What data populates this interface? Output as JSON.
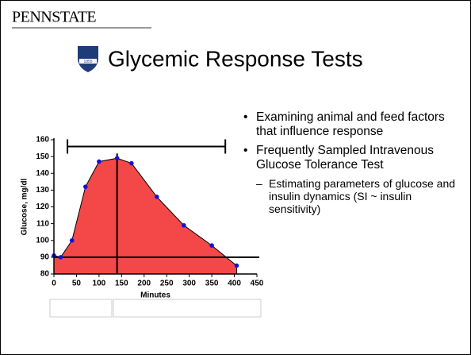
{
  "header": {
    "logo": "PENNSTATE",
    "seal_year": "1855",
    "title": "Glycemic Response Tests"
  },
  "bullets": [
    "Examining animal and feed factors that influence response",
    "Frequently Sampled Intravenous Glucose Tolerance Test"
  ],
  "sub_bullets": [
    "Estimating parameters of glucose and insulin dynamics (SI ~ insulin sensitivity)"
  ],
  "chart_data": {
    "type": "area",
    "xlabel": "Minutes",
    "ylabel": "Glucose, mg/dl",
    "x": [
      0,
      15,
      40,
      70,
      100,
      140,
      172,
      228,
      288,
      350,
      405
    ],
    "values": [
      91,
      90,
      100,
      132,
      147,
      149,
      146,
      126,
      109,
      97,
      85
    ],
    "color": "#f44848",
    "marker_color": "#1010e0",
    "xlim": [
      0,
      450
    ],
    "ylim": [
      80,
      160
    ],
    "xticks": [
      0,
      50,
      100,
      150,
      200,
      250,
      300,
      350,
      400,
      450
    ],
    "yticks": [
      80,
      90,
      100,
      110,
      120,
      130,
      140,
      150,
      160
    ],
    "hline": 90,
    "vline": 140,
    "range_bar": {
      "y": 156,
      "x": [
        30,
        380
      ]
    }
  }
}
